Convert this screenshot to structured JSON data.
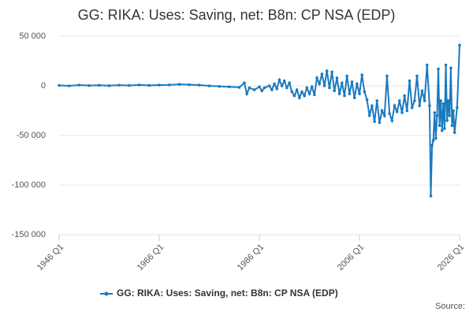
{
  "chart_data": {
    "type": "line",
    "title": "GG: RIKA: Uses: Saving, net: B8n: CP NSA (EDP)",
    "source": "Source:",
    "xlim": [
      1946,
      2026
    ],
    "xticks": [
      {
        "value": 1946,
        "label": "1946 Q1"
      },
      {
        "value": 1966,
        "label": "1966 Q1"
      },
      {
        "value": 1986,
        "label": "1986 Q1"
      },
      {
        "value": 2006,
        "label": "2006 Q1"
      },
      {
        "value": 2026,
        "label": "2026 Q1"
      }
    ],
    "ylim": [
      -150000,
      50000
    ],
    "yticks": [
      {
        "value": 50000,
        "label": "50 000"
      },
      0,
      {
        "value": -50000,
        "label": "-50 000"
      },
      {
        "value": -100000,
        "label": "-100 000"
      },
      {
        "value": -150000,
        "label": "-150 000"
      }
    ],
    "grid": true,
    "legend": "bottom",
    "x": [
      1946,
      1948,
      1950,
      1952,
      1954,
      1956,
      1958,
      1960,
      1962,
      1964,
      1966,
      1968,
      1970,
      1972,
      1974,
      1976,
      1978,
      1980,
      1982,
      1983,
      1983.5,
      1984,
      1985,
      1986,
      1986.5,
      1987,
      1988,
      1988.5,
      1989,
      1989.5,
      1990,
      1990.5,
      1991,
      1991.5,
      1992,
      1992.5,
      1993,
      1993.5,
      1994,
      1994.5,
      1995,
      1995.5,
      1996,
      1996.5,
      1997,
      1997.5,
      1998,
      1998.5,
      1999,
      1999.5,
      2000,
      2000.5,
      2001,
      2001.5,
      2002,
      2002.5,
      2003,
      2003.5,
      2004,
      2004.5,
      2005,
      2005.5,
      2006,
      2006.5,
      2007,
      2007.5,
      2008,
      2008.5,
      2009,
      2009.5,
      2010,
      2010.5,
      2011,
      2011.5,
      2012,
      2012.5,
      2013,
      2013.5,
      2014,
      2014.5,
      2015,
      2015.5,
      2016,
      2016.5,
      2017,
      2017.5,
      2018,
      2018.5,
      2019,
      2019.5,
      2020,
      2020.25,
      2020.5,
      2020.75,
      2021,
      2021.25,
      2021.5,
      2021.75,
      2022,
      2022.25,
      2022.5,
      2022.75,
      2023,
      2023.25,
      2023.5,
      2023.75,
      2024,
      2024.25,
      2024.5,
      2024.75,
      2025,
      2025.5,
      2026
    ],
    "series": [
      {
        "name": "GG: RIKA: Uses: Saving, net: B8n: CP NSA (EDP)",
        "color": "#1a7abf",
        "values": [
          500,
          0,
          800,
          300,
          600,
          200,
          700,
          400,
          900,
          500,
          800,
          1000,
          1500,
          1200,
          800,
          0,
          -500,
          -1000,
          -1500,
          3000,
          -8000,
          -2000,
          -4000,
          -1000,
          -5000,
          -2000,
          0,
          -4000,
          2000,
          -3000,
          6000,
          0,
          5000,
          -2000,
          3000,
          -6000,
          -10000,
          -4000,
          -12000,
          -6000,
          -10000,
          -2000,
          -8000,
          -1000,
          -9000,
          8000,
          2000,
          12000,
          0,
          15000,
          -2000,
          14000,
          -5000,
          8000,
          -8000,
          3000,
          -10000,
          10000,
          -8000,
          4000,
          -12000,
          2000,
          -8000,
          11000,
          -6000,
          -14000,
          -30000,
          -20000,
          -36000,
          -15000,
          -37000,
          -25000,
          -30000,
          10000,
          -28000,
          -35000,
          -20000,
          -26000,
          -15000,
          -27000,
          -10000,
          -25000,
          5000,
          -22000,
          -15000,
          10000,
          -20000,
          -5000,
          -15000,
          21000,
          -20000,
          -111000,
          -60000,
          -55000,
          -27000,
          -53000,
          -30000,
          17000,
          -40000,
          -15000,
          -45000,
          -18000,
          -43000,
          21000,
          -35000,
          -15000,
          -30000,
          18000,
          -40000,
          -25000,
          -47000,
          -22000,
          41000
        ]
      }
    ]
  }
}
